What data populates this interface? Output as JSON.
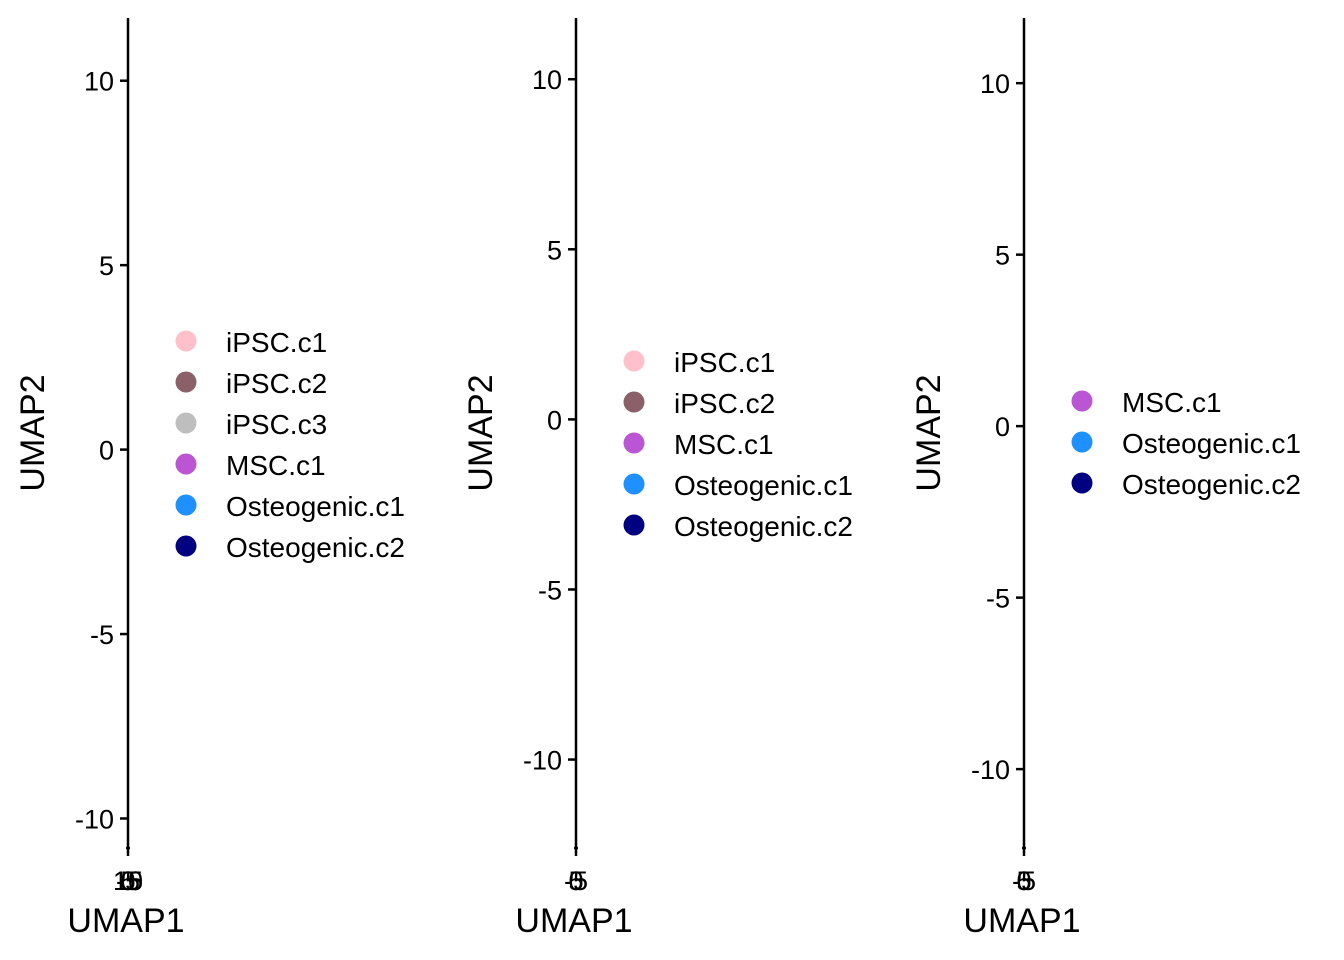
{
  "colors": {
    "iPSC.c1": "#FFC0CB",
    "iPSC.c2": "#8B6068",
    "iPSC.c3": "#BEBEBE",
    "MSC.c1": "#BA55D3",
    "Osteogenic.c1": "#1E90FF",
    "Osteogenic.c2": "#000080"
  },
  "chart_data": [
    {
      "type": "scatter",
      "xlabel": "UMAP1",
      "ylabel": "UMAP2",
      "xticks": [
        "-5",
        "0",
        "5",
        "10",
        "15"
      ],
      "yticks": [
        10,
        5,
        0,
        -5,
        -10
      ],
      "ylim": [
        -10.8,
        11.7
      ],
      "legend": [
        "iPSC.c1",
        "iPSC.c2",
        "iPSC.c3",
        "MSC.c1",
        "Osteogenic.c1",
        "Osteogenic.c2"
      ],
      "legend_position": "right"
    },
    {
      "type": "scatter",
      "xlabel": "UMAP1",
      "ylabel": "UMAP2",
      "xticks": [
        "-5",
        "0",
        "5"
      ],
      "yticks": [
        10,
        5,
        0,
        -5,
        -10
      ],
      "ylim": [
        -12.6,
        11.8
      ],
      "legend": [
        "iPSC.c1",
        "iPSC.c2",
        "MSC.c1",
        "Osteogenic.c1",
        "Osteogenic.c2"
      ],
      "legend_position": "right"
    },
    {
      "type": "scatter",
      "xlabel": "UMAP1",
      "ylabel": "UMAP2",
      "xticks": [
        "-5",
        "0",
        "5"
      ],
      "yticks": [
        10,
        5,
        0,
        -5,
        -10
      ],
      "ylim": [
        -12.3,
        11.9
      ],
      "legend": [
        "MSC.c1",
        "Osteogenic.c1",
        "Osteogenic.c2"
      ],
      "legend_position": "right"
    }
  ]
}
